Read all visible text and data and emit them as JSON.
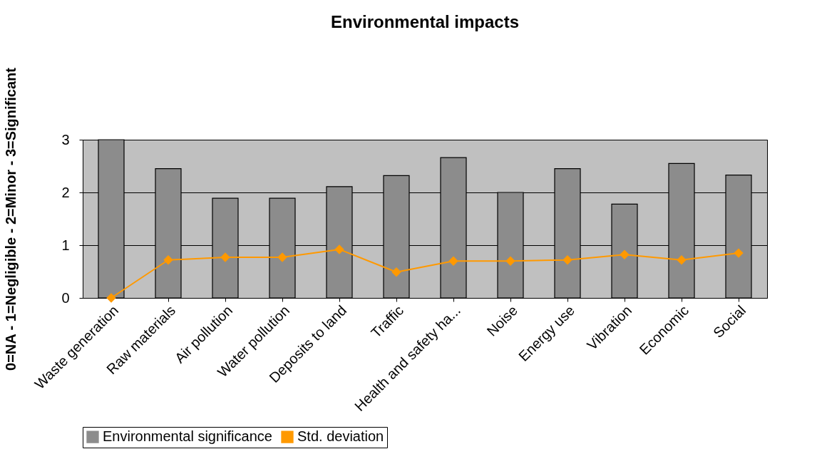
{
  "chart_data": {
    "type": "bar",
    "title": "Environmental impacts",
    "ylabel": "0=NA - 1=Negligible - 2=Minor - 3=Significant",
    "categories": [
      "Waste generation",
      "Raw materials",
      "Air pollution",
      "Water pollution",
      "Deposits to land",
      "Traffic",
      "Health and safety ha...",
      "Noise",
      "Energy use",
      "Vibration",
      "Economic",
      "Social"
    ],
    "series": [
      {
        "name": "Environmental significance",
        "color": "#8c8c8c",
        "values": [
          3.0,
          2.45,
          1.89,
          1.89,
          2.11,
          2.32,
          2.66,
          2.0,
          2.45,
          1.78,
          2.55,
          2.33
        ]
      },
      {
        "name": "Std. deviation",
        "type": "line",
        "color": "#ff9900",
        "marker": "diamond",
        "values": [
          0.0,
          0.72,
          0.77,
          0.77,
          0.92,
          0.49,
          0.7,
          0.7,
          0.72,
          0.82,
          0.72,
          0.85
        ]
      }
    ],
    "ylim": [
      0,
      3
    ],
    "yticks": [
      0,
      1,
      2,
      3
    ],
    "grid": "y",
    "legend": "bottom"
  }
}
